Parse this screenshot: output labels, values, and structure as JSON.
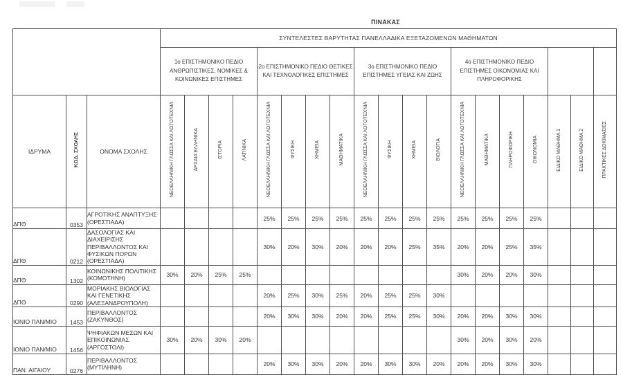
{
  "page": {
    "title": "ΠΙΝΑΚΑΣ"
  },
  "table": {
    "main_header": "ΣΥΝΤΕΛΕΣΤΕΣ ΒΑΡΥΤΗΤΑΣ ΠΑΝΕΛΛΑΔΙΚΑ ΕΞΕΤΑΖΟΜΕΝΩΝ ΜΑΘΗΜΑΤΩΝ",
    "left_headers": {
      "institution": "ΙΔΡΥΜΑ",
      "code": "ΚΩΔ. ΣΧΟΛΗΣ",
      "name": "ΟΝΟΜΑ ΣΧΟΛΗΣ"
    },
    "fields": [
      {
        "label": "1ο ΕΠΙΣΤΗΜΟΝΙΚΟ ΠΕΔΙΟ ΑΝΘΡΩΠΙΣΤΙΚΕΣ, ΝΟΜΙΚΕΣ & ΚΟΙΝΩΝΙΚΕΣ ΕΠΙΣΤΗΜΕΣ",
        "subjects": [
          "ΝΕΟΕΛΛΗΝΙΚΗ ΓΛΩΣΣΑ ΚΑΙ ΛΟΓΟΤΕΧΝΙΑ",
          "ΑΡΧΑΙΑ ΕΛΛΗΝΙΚΑ",
          "ΙΣΤΟΡΙΑ",
          "ΛΑΤΙΝΙΚΑ"
        ]
      },
      {
        "label": "2ο ΕΠΙΣΤΗΜΟΝΙΚΟ ΠΕΔΙΟ ΘΕΤΙΚΕΣ ΚΑΙ ΤΕΧΝΟΛΟΓΙΚΕΣ ΕΠΙΣΤΗΜΕΣ",
        "subjects": [
          "ΝΕΟΕΛΛΗΝΙΚΗ ΓΛΩΣΣΑ ΚΑΙ ΛΟΓΟΤΕΧΝΙΑ",
          "ΦΥΣΙΚΗ",
          "ΧΗΜΕΙΑ",
          "ΜΑΘΗΜΑΤΙΚΑ"
        ]
      },
      {
        "label": "3ο ΕΠΙΣΤΗΜΟΝΙΚΟ ΠΕΔΙΟ ΕΠΙΣΤΗΜΕΣ ΥΓΕΙΑΣ ΚΑΙ ΖΩΗΣ",
        "subjects": [
          "ΝΕΟΕΛΛΗΝΙΚΗ ΓΛΩΣΣΑ ΚΑΙ ΛΟΓΟΤΕΧΝΙΑ",
          "ΦΥΣΙΚΗ",
          "ΧΗΜΕΙΑ",
          "ΒΙΟΛΟΓΙΑ"
        ]
      },
      {
        "label": "4ο ΕΠΙΣΤΗΜΟΝΙΚΟ ΠΕΔΙΟ ΕΠΙΣΤΗΜΕΣ ΟΙΚΟΝΟΜΙΑΣ ΚΑΙ ΠΛΗΡΟΦΟΡΙΚΗΣ",
        "subjects": [
          "ΝΕΟΕΛΛΗΝΙΚΗ ΓΛΩΣΣΑ ΚΑΙ ΛΟΓΟΤΕΧΝΙΑ",
          "ΜΑΘΗΜΑΤΙΚΑ",
          "ΠΛΗΡΟΦΟΡΙΚΗ",
          "ΟΙΚΟΝΟΜΙΑ"
        ]
      }
    ],
    "special_columns": [
      "ΕΙΔΙΚΟ ΜΑΘΗΜΑ 1",
      "ΕΙΔΙΚΟ ΜΑΘΗΜΑ 2",
      "ΠΡΑΚΤΙΚΕΣ ΔΟΚΙΜΑΣΙΕΣ"
    ],
    "rows": [
      {
        "institution": "ΔΠΘ",
        "code": "0353",
        "name": "ΑΓΡΟΤΙΚΗΣ ΑΝΑΠΤΥΞΗΣ (ΟΡΕΣΤΙΑΔΑ)",
        "values": [
          "",
          "",
          "",
          "",
          "25%",
          "25%",
          "25%",
          "25%",
          "25%",
          "25%",
          "25%",
          "25%",
          "25%",
          "25%",
          "25%",
          "25%",
          "",
          "",
          ""
        ]
      },
      {
        "institution": "ΔΠΘ",
        "code": "0212",
        "name": "ΔΑΣΟΛΟΓΙΑΣ ΚΑΙ ΔΙΑΧΕΙΡΙΣΗΣ ΠΕΡΙΒΑΛΛΟΝΤΟΣ ΚΑΙ ΦΥΣΙΚΩΝ ΠΟΡΩΝ (ΟΡΕΣΤΙΑΔΑ)",
        "values": [
          "",
          "",
          "",
          "",
          "30%",
          "20%",
          "30%",
          "20%",
          "20%",
          "20%",
          "25%",
          "35%",
          "20%",
          "20%",
          "25%",
          "35%",
          "",
          "",
          ""
        ]
      },
      {
        "institution": "ΔΠΘ",
        "code": "1302",
        "name": "ΚΟΙΝΩΝΙΚΗΣ ΠΟΛΙΤΙΚΗΣ (ΚΟΜΟΤΗΝΗ)",
        "values": [
          "30%",
          "20%",
          "25%",
          "25%",
          "",
          "",
          "",
          "",
          "",
          "",
          "",
          "",
          "30%",
          "20%",
          "20%",
          "30%",
          "",
          "",
          ""
        ]
      },
      {
        "institution": "ΔΠΘ",
        "code": "0290",
        "name": "ΜΟΡΙΑΚΗΣ ΒΙΟΛΟΓΙΑΣ ΚΑΙ ΓΕΝΕΤΙΚΗΣ (ΑΛΕΞΑΝΔΡΟΥΠΟΛΗ)",
        "values": [
          "",
          "",
          "",
          "",
          "20%",
          "25%",
          "30%",
          "25%",
          "20%",
          "25%",
          "25%",
          "30%",
          "",
          "",
          "",
          "",
          "",
          "",
          ""
        ]
      },
      {
        "institution": "ΙΟΝΙΟ ΠΑΝ/ΜΙΟ",
        "code": "1453",
        "name": "ΠΕΡΙΒΑΛΛΟΝΤΟΣ (ΖΑΚΥΝΘΟΣ)",
        "values": [
          "",
          "",
          "",
          "",
          "20%",
          "30%",
          "30%",
          "20%",
          "20%",
          "25%",
          "25%",
          "30%",
          "20%",
          "20%",
          "30%",
          "30%",
          "",
          "",
          ""
        ]
      },
      {
        "institution": "ΙΟΝΙΟ ΠΑΝ/ΜΙΟ",
        "code": "1456",
        "name": "ΨΗΦΙΑΚΩΝ ΜΕΣΩΝ ΚΑΙ ΕΠΙΚΟΙΝΩΝΙΑΣ (ΑΡΓΟΣΤΟΛΙ)",
        "values": [
          "30%",
          "20%",
          "30%",
          "20%",
          "",
          "",
          "",
          "",
          "",
          "",
          "",
          "",
          "30%",
          "20%",
          "30%",
          "20%",
          "",
          "",
          ""
        ]
      },
      {
        "institution": "ΠΑΝ. ΑΙΓΑΙΟΥ",
        "code": "0276",
        "name": "ΠΕΡΙΒΑΛΛΟΝΤΟΣ (ΜΥΤΙΛΗΝΗ)",
        "values": [
          "",
          "",
          "",
          "",
          "20%",
          "30%",
          "30%",
          "20%",
          "20%",
          "30%",
          "30%",
          "20%",
          "20%",
          "20%",
          "30%",
          "30%",
          "",
          "",
          ""
        ]
      }
    ]
  },
  "colors": {
    "ink": "#3a3a3a",
    "border": "#4e4e4e",
    "paper": "#ffffff"
  }
}
